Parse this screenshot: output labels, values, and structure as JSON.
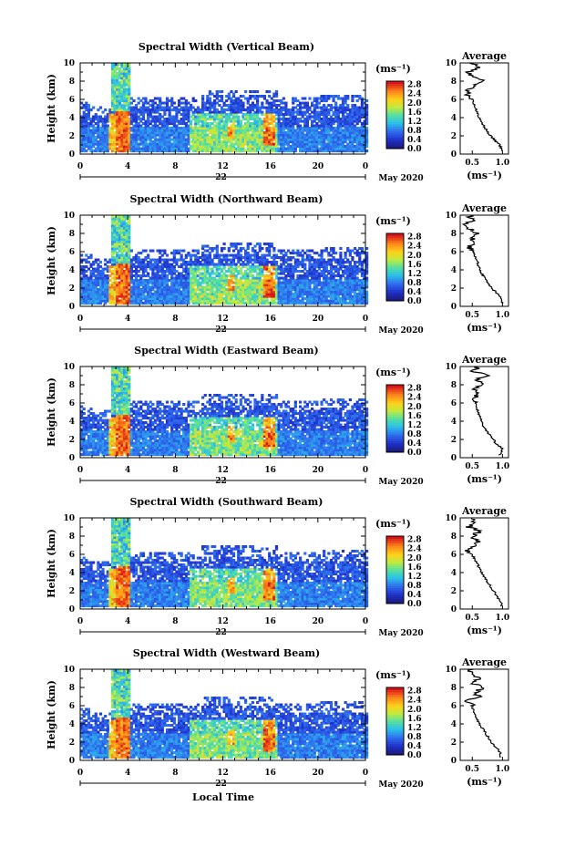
{
  "figure": {
    "xlabel": "Local Time",
    "date_label": "22",
    "month_label": "May 2020",
    "unit_label": "(ms⁻¹)",
    "avg_title": "Average",
    "avg_xlabel": "(ms⁻¹)"
  },
  "chart_data": [
    {
      "type": "heatmap",
      "title": "Spectral Width (Vertical Beam)",
      "ylabel": "Height (km)",
      "x_ticks": [
        "0",
        "4",
        "8",
        "12",
        "16",
        "20",
        "0"
      ],
      "y_ticks": [
        "0",
        "2",
        "4",
        "6",
        "8",
        "10"
      ],
      "xlim": [
        0,
        24
      ],
      "ylim": [
        0,
        10
      ],
      "colorbar_ticks": [
        "0.0",
        "0.4",
        "0.8",
        "1.2",
        "1.6",
        "2.0",
        "2.4",
        "2.8"
      ],
      "avg_x_ticks": [
        "0.5",
        "1.0"
      ],
      "avg_xlim": [
        0.3,
        1.1
      ],
      "avg_profile": {
        "height": [
          0.3,
          1,
          1.5,
          2,
          3,
          4,
          5,
          6,
          6.5,
          7,
          7.5,
          8,
          8.5,
          9,
          9.5,
          10
        ],
        "value": [
          1.0,
          0.95,
          0.88,
          0.8,
          0.7,
          0.62,
          0.55,
          0.5,
          0.42,
          0.45,
          0.55,
          0.72,
          0.5,
          0.45,
          0.6,
          0.5
        ]
      }
    },
    {
      "type": "heatmap",
      "title": "Spectral Width (Northward Beam)",
      "ylabel": "Height (km)",
      "x_ticks": [
        "0",
        "4",
        "8",
        "12",
        "16",
        "20",
        "0"
      ],
      "y_ticks": [
        "0",
        "2",
        "4",
        "6",
        "8",
        "10"
      ],
      "xlim": [
        0,
        24
      ],
      "ylim": [
        0,
        10
      ],
      "colorbar_ticks": [
        "0.0",
        "0.4",
        "0.8",
        "1.2",
        "1.6",
        "2.0",
        "2.4",
        "2.8"
      ],
      "avg_x_ticks": [
        "0.5",
        "1.0"
      ],
      "avg_xlim": [
        0.3,
        1.1
      ],
      "avg_profile": {
        "height": [
          0.3,
          1,
          1.5,
          2,
          3,
          4,
          5,
          6,
          6.5,
          7,
          7.5,
          8,
          8.5,
          9,
          9.5,
          10
        ],
        "value": [
          1.0,
          0.98,
          0.9,
          0.82,
          0.72,
          0.62,
          0.58,
          0.52,
          0.45,
          0.55,
          0.5,
          0.6,
          0.45,
          0.4,
          0.5,
          0.45
        ]
      }
    },
    {
      "type": "heatmap",
      "title": "Spectral Width (Eastward Beam)",
      "ylabel": "Height (km)",
      "x_ticks": [
        "0",
        "4",
        "8",
        "12",
        "16",
        "20",
        "0"
      ],
      "y_ticks": [
        "0",
        "2",
        "4",
        "6",
        "8",
        "10"
      ],
      "xlim": [
        0,
        24
      ],
      "ylim": [
        0,
        10
      ],
      "colorbar_ticks": [
        "0.0",
        "0.4",
        "0.8",
        "1.2",
        "1.6",
        "2.0",
        "2.4",
        "2.8"
      ],
      "avg_x_ticks": [
        "0.5",
        "1.0"
      ],
      "avg_xlim": [
        0.3,
        1.1
      ],
      "avg_profile": {
        "height": [
          0.3,
          1,
          1.5,
          2,
          3,
          4,
          5,
          6,
          6.5,
          7,
          7.5,
          8,
          8.5,
          9,
          9.5,
          10
        ],
        "value": [
          0.95,
          1.0,
          0.9,
          0.85,
          0.72,
          0.65,
          0.6,
          0.55,
          0.5,
          0.62,
          0.5,
          0.7,
          0.55,
          0.75,
          0.5,
          0.6
        ]
      }
    },
    {
      "type": "heatmap",
      "title": "Spectral Width (Southward Beam)",
      "ylabel": "Height (km)",
      "x_ticks": [
        "0",
        "4",
        "8",
        "12",
        "16",
        "20",
        "0"
      ],
      "y_ticks": [
        "0",
        "2",
        "4",
        "6",
        "8",
        "10"
      ],
      "xlim": [
        0,
        24
      ],
      "ylim": [
        0,
        10
      ],
      "colorbar_ticks": [
        "0.0",
        "0.4",
        "0.8",
        "1.2",
        "1.6",
        "2.0",
        "2.4",
        "2.8"
      ],
      "avg_x_ticks": [
        "0.5",
        "1.0"
      ],
      "avg_xlim": [
        0.3,
        1.1
      ],
      "avg_profile": {
        "height": [
          0.3,
          1,
          1.5,
          2,
          3,
          4,
          5,
          6,
          6.5,
          7,
          7.5,
          8,
          8.5,
          9,
          9.5,
          10
        ],
        "value": [
          1.0,
          0.95,
          0.9,
          0.85,
          0.75,
          0.65,
          0.58,
          0.5,
          0.42,
          0.55,
          0.6,
          0.5,
          0.62,
          0.45,
          0.5,
          0.48
        ]
      }
    },
    {
      "type": "heatmap",
      "title": "Spectral Width (Westward Beam)",
      "ylabel": "Height (km)",
      "x_ticks": [
        "0",
        "4",
        "8",
        "12",
        "16",
        "20",
        "0"
      ],
      "y_ticks": [
        "0",
        "2",
        "4",
        "6",
        "8",
        "10"
      ],
      "xlim": [
        0,
        24
      ],
      "ylim": [
        0,
        10
      ],
      "colorbar_ticks": [
        "0.0",
        "0.4",
        "0.8",
        "1.2",
        "1.6",
        "2.0",
        "2.4",
        "2.8"
      ],
      "avg_x_ticks": [
        "0.5",
        "1.0"
      ],
      "avg_xlim": [
        0.3,
        1.1
      ],
      "avg_profile": {
        "height": [
          0.3,
          1,
          1.5,
          2,
          3,
          4,
          5,
          6,
          6.5,
          7,
          7.5,
          8,
          8.5,
          9,
          9.5,
          10
        ],
        "value": [
          0.98,
          0.95,
          0.88,
          0.82,
          0.72,
          0.62,
          0.55,
          0.5,
          0.42,
          0.6,
          0.55,
          0.68,
          0.5,
          0.62,
          0.45,
          0.5
        ]
      }
    }
  ]
}
